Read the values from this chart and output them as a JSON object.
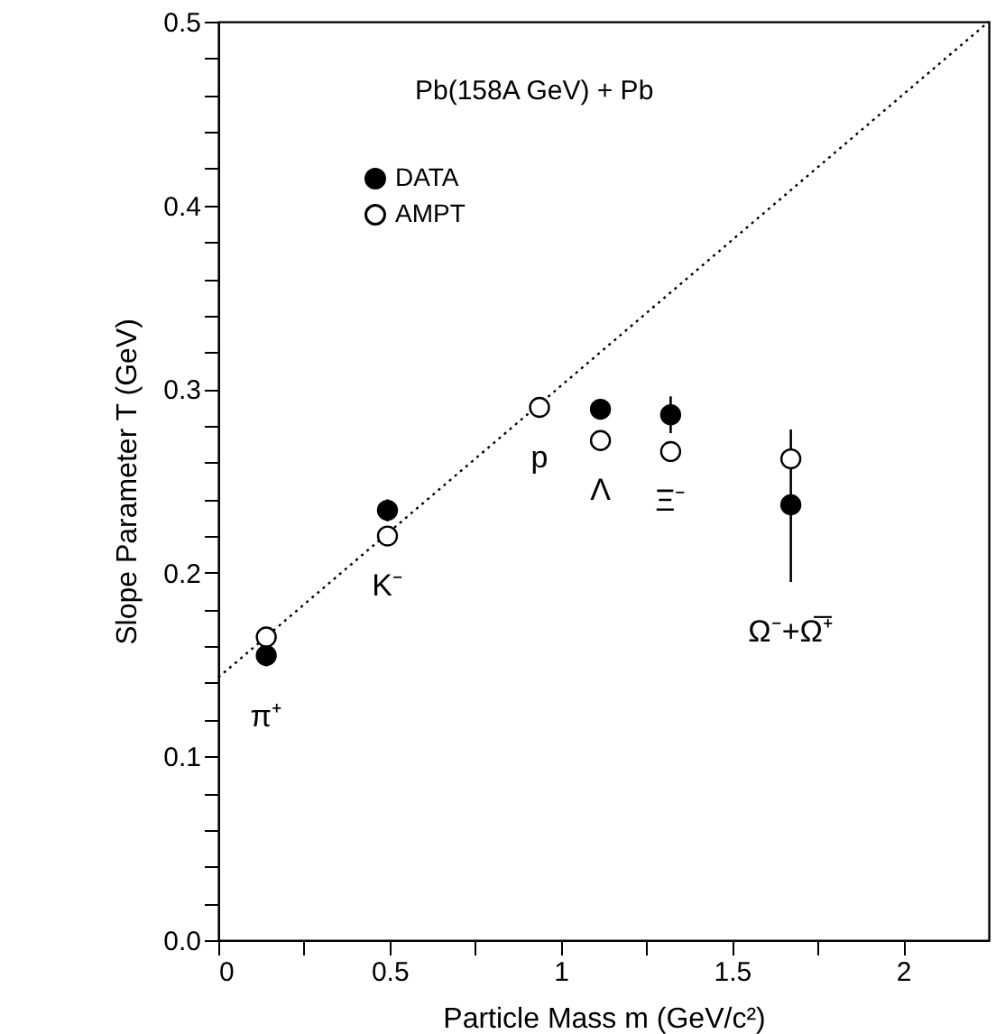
{
  "chart_data": {
    "type": "scatter",
    "xlabel": "Particle Mass m (GeV/c²)",
    "ylabel": "Slope  Parameter T (GeV)",
    "x": [
      0.14,
      0.494,
      0.938,
      1.116,
      1.321,
      1.672
    ],
    "series": [
      {
        "name": "DATA",
        "color": "#000000",
        "values": [
          0.155,
          0.234,
          null,
          0.289,
          0.286,
          0.237
        ],
        "errors": [
          0.006,
          0.006,
          null,
          null,
          0.01,
          [
            0.195,
            0.278
          ]
        ]
      },
      {
        "name": "AMPT",
        "color": "#ffffff",
        "values": [
          0.165,
          0.22,
          0.29,
          0.272,
          0.266,
          0.262
        ]
      },
      {
        "type": "line",
        "x": [
          0,
          2.25
        ],
        "values": [
          0.143,
          0.5
        ],
        "color": "#000000",
        "line_style": "dotted",
        "marker": "none"
      }
    ],
    "annotations": [
      "Pb(158A GeV) + Pb",
      "π⁺",
      "K⁻",
      "p",
      "Λ",
      "Ξ⁻",
      "Ω⁻+Ω̅⁺"
    ],
    "xlim": [
      0,
      2.25
    ],
    "ylim": [
      0,
      0.5
    ],
    "xticks": [
      0,
      0.5,
      1,
      1.5,
      2,
      {
        "value": 0.25,
        "label": null
      },
      {
        "value": 0.75,
        "label": null
      },
      {
        "value": 1.25,
        "label": null
      },
      {
        "value": 1.75,
        "label": null
      }
    ],
    "yticks": [
      {
        "value": 0,
        "label": "0.0"
      },
      0.1,
      0.2,
      0.3,
      0.4,
      0.5,
      {
        "value": 0.02,
        "label": null
      },
      {
        "value": 0.04,
        "label": null
      },
      {
        "value": 0.06,
        "label": null
      },
      {
        "value": 0.08,
        "label": null
      },
      {
        "value": 0.12,
        "label": null
      },
      {
        "value": 0.14,
        "label": null
      },
      {
        "value": 0.16,
        "label": null
      },
      {
        "value": 0.18,
        "label": null
      },
      {
        "value": 0.22,
        "label": null
      },
      {
        "value": 0.24,
        "label": null
      },
      {
        "value": 0.26,
        "label": null
      },
      {
        "value": 0.28,
        "label": null
      },
      {
        "value": 0.32,
        "label": null
      },
      {
        "value": 0.34,
        "label": null
      },
      {
        "value": 0.36,
        "label": null
      },
      {
        "value": 0.38,
        "label": null
      },
      {
        "value": 0.42,
        "label": null
      },
      {
        "value": 0.44,
        "label": null
      },
      {
        "value": 0.46,
        "label": null
      },
      {
        "value": 0.48,
        "label": null
      }
    ],
    "legend": "top left",
    "grid": false,
    "marker": "circle"
  }
}
